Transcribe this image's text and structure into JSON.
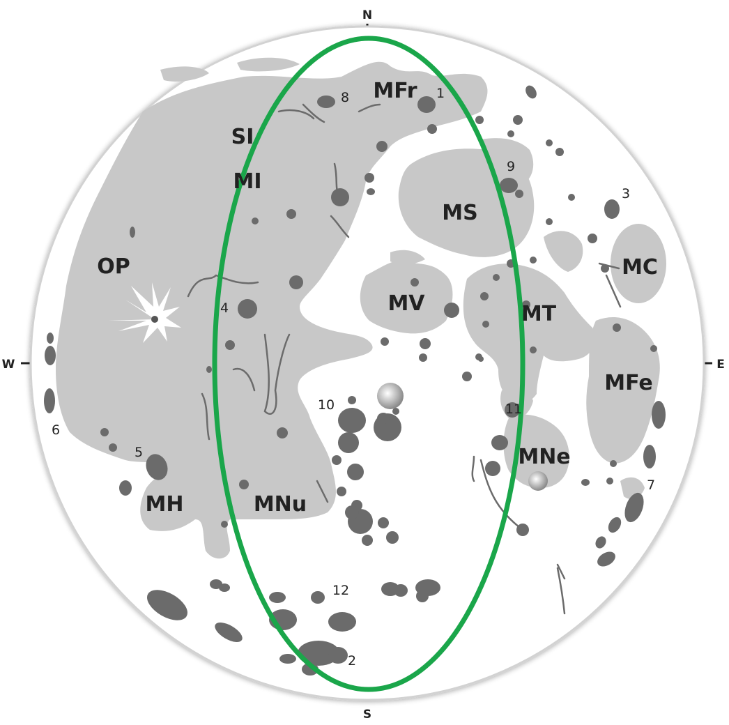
{
  "compass": {
    "north": "N",
    "south": "S",
    "west": "W",
    "east": "E"
  },
  "maria": [
    {
      "id": "op",
      "label": "OP"
    },
    {
      "id": "si",
      "label": "SI"
    },
    {
      "id": "mi",
      "label": "MI"
    },
    {
      "id": "mfr",
      "label": "MFr"
    },
    {
      "id": "ms",
      "label": "MS"
    },
    {
      "id": "mv",
      "label": "MV"
    },
    {
      "id": "mt",
      "label": "MT"
    },
    {
      "id": "mc",
      "label": "MC"
    },
    {
      "id": "mfe",
      "label": "MFe"
    },
    {
      "id": "mne",
      "label": "MNe"
    },
    {
      "id": "mh",
      "label": "MH"
    },
    {
      "id": "mnu",
      "label": "MNu"
    }
  ],
  "craters": [
    {
      "id": "1",
      "label": "1"
    },
    {
      "id": "2",
      "label": "2"
    },
    {
      "id": "3",
      "label": "3"
    },
    {
      "id": "4",
      "label": "4"
    },
    {
      "id": "5",
      "label": "5"
    },
    {
      "id": "6",
      "label": "6"
    },
    {
      "id": "7",
      "label": "7"
    },
    {
      "id": "8",
      "label": "8"
    },
    {
      "id": "9",
      "label": "9"
    },
    {
      "id": "10",
      "label": "10"
    },
    {
      "id": "11",
      "label": "11"
    },
    {
      "id": "12",
      "label": "12"
    }
  ],
  "colors": {
    "highlands": "#ffffff",
    "maria": "#c8c8c8",
    "craters": "#6b6b6b",
    "rim": "#cccccc",
    "highlight_ellipse": "#1aa64a",
    "text": "#222222"
  }
}
